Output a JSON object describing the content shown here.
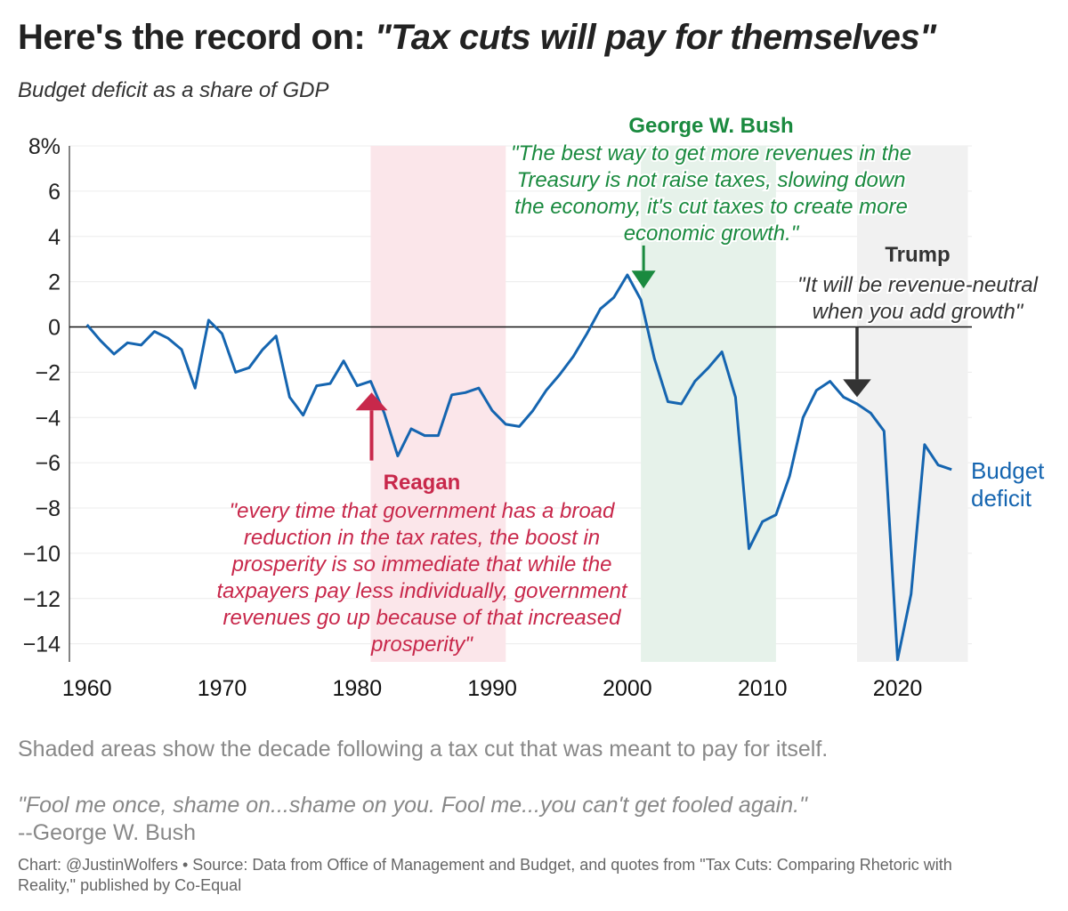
{
  "header": {
    "title_lead": "Here's the record on: ",
    "title_quote": "\"Tax cuts will pay for themselves\"",
    "subtitle": "Budget deficit as a share of GDP"
  },
  "colors": {
    "line": "#1565b0",
    "reagan": "#c8284b",
    "bush": "#1a8a3f",
    "trump": "#333333",
    "reagan_shade": "#fbe6ea",
    "bush_shade": "#e6f2ea",
    "trump_shade": "#f1f1f1"
  },
  "chart_data": {
    "type": "line",
    "title": "",
    "xlabel": "",
    "ylabel": "",
    "xlim": [
      1958.7,
      2025.5
    ],
    "ylim": [
      -14.8,
      8
    ],
    "x_ticks": [
      1960,
      1970,
      1980,
      1990,
      2000,
      2010,
      2020
    ],
    "y_ticks": [
      8,
      6,
      4,
      2,
      0,
      -2,
      -4,
      -6,
      -8,
      -10,
      -12,
      -14
    ],
    "y_tick_labels": [
      "8%",
      "6",
      "4",
      "2",
      "0",
      "−2",
      "−4",
      "−6",
      "−8",
      "−10",
      "−12",
      "−14"
    ],
    "grid": "horizontal",
    "series": [
      {
        "name": "Budget deficit",
        "label_lines": [
          "Budget",
          "deficit"
        ],
        "x": [
          1960,
          1961,
          1962,
          1963,
          1964,
          1965,
          1966,
          1967,
          1968,
          1969,
          1970,
          1971,
          1972,
          1973,
          1974,
          1975,
          1976,
          1977,
          1978,
          1979,
          1980,
          1981,
          1982,
          1983,
          1984,
          1985,
          1986,
          1987,
          1988,
          1989,
          1990,
          1991,
          1992,
          1993,
          1994,
          1995,
          1996,
          1997,
          1998,
          1999,
          2000,
          2001,
          2002,
          2003,
          2004,
          2005,
          2006,
          2007,
          2008,
          2009,
          2010,
          2011,
          2012,
          2013,
          2014,
          2015,
          2016,
          2017,
          2018,
          2019,
          2020,
          2021,
          2022,
          2023,
          2024
        ],
        "values": [
          0.1,
          -0.6,
          -1.2,
          -0.7,
          -0.8,
          -0.2,
          -0.5,
          -1.0,
          -2.7,
          0.3,
          -0.3,
          -2.0,
          -1.8,
          -1.0,
          -0.4,
          -3.1,
          -3.9,
          -2.6,
          -2.5,
          -1.5,
          -2.6,
          -2.4,
          -3.8,
          -5.7,
          -4.5,
          -4.8,
          -4.8,
          -3.0,
          -2.9,
          -2.7,
          -3.7,
          -4.3,
          -4.4,
          -3.7,
          -2.8,
          -2.1,
          -1.3,
          -0.3,
          0.8,
          1.3,
          2.3,
          1.2,
          -1.4,
          -3.3,
          -3.4,
          -2.4,
          -1.8,
          -1.1,
          -3.1,
          -9.8,
          -8.6,
          -8.3,
          -6.6,
          -4.0,
          -2.8,
          -2.4,
          -3.1,
          -3.4,
          -3.8,
          -4.6,
          -14.7,
          -11.8,
          -5.2,
          -6.1,
          -6.3
        ]
      }
    ],
    "shaded_periods": [
      {
        "name": "Reagan",
        "start": 1981,
        "end": 1991
      },
      {
        "name": "Bush",
        "start": 2001,
        "end": 2011
      },
      {
        "name": "Trump",
        "start": 2017,
        "end": 2025.2
      }
    ],
    "annotations": [
      {
        "name": "Reagan",
        "x": 1981,
        "arrow_from": -5.9,
        "arrow_to": -2.9,
        "quote_lines": [
          "\"every time that government has a broad",
          "reduction in the tax rates, the boost in",
          "prosperity is so immediate that while the",
          "taxpayers pay less individually, government",
          "revenues go up because of that increased",
          "prosperity\""
        ]
      },
      {
        "name": "George W. Bush",
        "x": 2001.2,
        "arrow_from": 3.6,
        "arrow_to": 1.7,
        "quote_lines": [
          "\"The best way to get more revenues in the",
          "Treasury is not raise taxes, slowing down",
          "the economy, it's cut taxes to create more",
          "economic growth.\""
        ]
      },
      {
        "name": "Trump",
        "x": 2017,
        "arrow_from": 0,
        "arrow_to": -3.1,
        "quote_lines": [
          "\"It will be revenue-neutral",
          "when you add growth\""
        ]
      }
    ]
  },
  "notes": {
    "shaded_note": "Shaded areas show the decade following a tax cut that was meant to pay for itself.",
    "fool_quote": "\"Fool me once, shame on...shame on you. Fool me...you can't get fooled again.\"",
    "fool_attribution": "--George W. Bush",
    "credit_line1": "Chart: @JustinWolfers • Source: Data from Office of Management and Budget, and quotes from \"Tax Cuts: Comparing Rhetoric with",
    "credit_line2": "Reality,\" published by Co-Equal"
  }
}
